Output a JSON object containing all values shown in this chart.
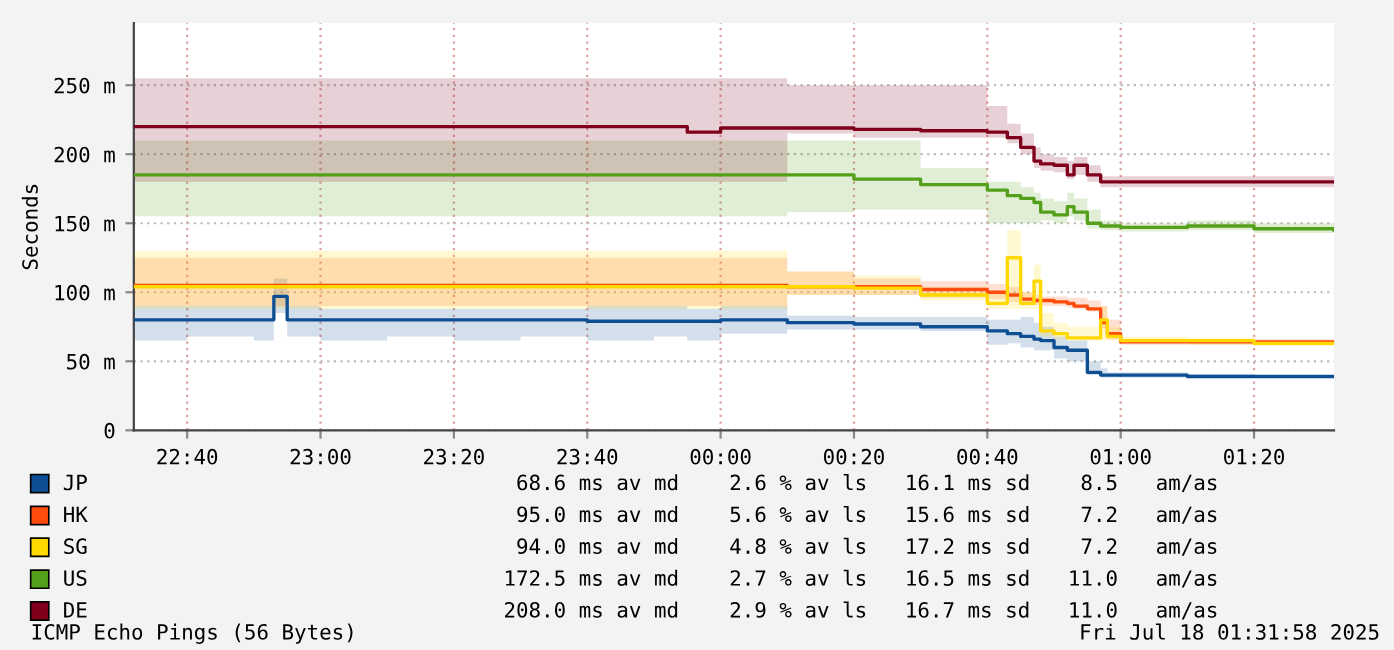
{
  "chart_data": {
    "type": "step",
    "ylabel": "Seconds",
    "x": [
      "2025-07-17T22:32",
      "2025-07-17T22:40",
      "2025-07-17T22:50",
      "2025-07-17T22:53",
      "2025-07-17T22:55",
      "2025-07-17T23:00",
      "2025-07-17T23:10",
      "2025-07-17T23:20",
      "2025-07-17T23:30",
      "2025-07-17T23:40",
      "2025-07-17T23:50",
      "2025-07-17T23:55",
      "2025-07-18T00:00",
      "2025-07-18T00:10",
      "2025-07-18T00:20",
      "2025-07-18T00:30",
      "2025-07-18T00:40",
      "2025-07-18T00:43",
      "2025-07-18T00:45",
      "2025-07-18T00:47",
      "2025-07-18T00:48",
      "2025-07-18T00:50",
      "2025-07-18T00:52",
      "2025-07-18T00:53",
      "2025-07-18T00:55",
      "2025-07-18T00:57",
      "2025-07-18T00:58",
      "2025-07-18T01:00",
      "2025-07-18T01:10",
      "2025-07-18T01:20",
      "2025-07-18T01:32"
    ],
    "series": [
      {
        "name": "JP",
        "color": "#0e4f94",
        "values": [
          80,
          80,
          80,
          97,
          80,
          80,
          80,
          80,
          80,
          79,
          79,
          79,
          80,
          78,
          77,
          75,
          72,
          70,
          68,
          66,
          65,
          60,
          58,
          58,
          42,
          40,
          40,
          40,
          39,
          39,
          39
        ],
        "lower": [
          65,
          68,
          65,
          85,
          68,
          65,
          68,
          65,
          68,
          65,
          68,
          65,
          70,
          73,
          73,
          72,
          62,
          63,
          60,
          58,
          58,
          52,
          50,
          50,
          40,
          38,
          38,
          38,
          38,
          38,
          38
        ],
        "upper": [
          90,
          90,
          90,
          110,
          90,
          88,
          88,
          88,
          88,
          90,
          90,
          88,
          90,
          83,
          82,
          82,
          80,
          80,
          82,
          78,
          75,
          68,
          65,
          65,
          50,
          45,
          42,
          42,
          41,
          40,
          40
        ]
      },
      {
        "name": "HK",
        "color": "#ff4c0c",
        "values": [
          105,
          105,
          105,
          105,
          105,
          105,
          105,
          105,
          105,
          105,
          105,
          105,
          105,
          104,
          104,
          102,
          100,
          98,
          95,
          94,
          94,
          93,
          92,
          90,
          88,
          78,
          70,
          64,
          64,
          64,
          64
        ],
        "lower": [
          90,
          90,
          90,
          90,
          90,
          90,
          90,
          90,
          90,
          90,
          90,
          90,
          90,
          98,
          98,
          96,
          95,
          93,
          92,
          91,
          90,
          90,
          89,
          88,
          86,
          74,
          66,
          62,
          62,
          62,
          62
        ],
        "upper": [
          125,
          125,
          125,
          125,
          125,
          125,
          125,
          125,
          125,
          125,
          125,
          125,
          125,
          115,
          110,
          108,
          106,
          104,
          100,
          98,
          97,
          97,
          96,
          96,
          94,
          90,
          80,
          66,
          66,
          66,
          66
        ]
      },
      {
        "name": "SG",
        "color": "#ffd800",
        "values": [
          104,
          104,
          104,
          104,
          104,
          104,
          104,
          104,
          104,
          104,
          104,
          104,
          104,
          104,
          103,
          98,
          92,
          125,
          92,
          108,
          72,
          70,
          67,
          67,
          67,
          80,
          68,
          65,
          65,
          63,
          63
        ],
        "lower": [
          88,
          88,
          88,
          88,
          88,
          88,
          88,
          88,
          88,
          88,
          88,
          88,
          88,
          98,
          98,
          94,
          88,
          88,
          88,
          88,
          68,
          66,
          65,
          65,
          65,
          65,
          65,
          63,
          62,
          61,
          61
        ],
        "upper": [
          130,
          130,
          130,
          130,
          130,
          130,
          130,
          130,
          130,
          130,
          130,
          130,
          130,
          115,
          112,
          104,
          100,
          145,
          100,
          120,
          85,
          78,
          75,
          75,
          75,
          90,
          75,
          68,
          67,
          65,
          65
        ]
      },
      {
        "name": "US",
        "color": "#55a01a",
        "values": [
          185,
          185,
          185,
          185,
          185,
          185,
          185,
          185,
          185,
          185,
          185,
          185,
          185,
          185,
          182,
          178,
          174,
          170,
          168,
          165,
          158,
          156,
          162,
          158,
          150,
          148,
          148,
          147,
          148,
          146,
          145
        ],
        "lower": [
          155,
          155,
          155,
          155,
          155,
          155,
          155,
          155,
          155,
          155,
          155,
          155,
          155,
          158,
          160,
          160,
          150,
          150,
          150,
          150,
          152,
          150,
          155,
          152,
          146,
          145,
          145,
          144,
          145,
          143,
          142
        ],
        "upper": [
          210,
          210,
          210,
          210,
          210,
          210,
          210,
          210,
          210,
          210,
          210,
          210,
          210,
          210,
          210,
          190,
          180,
          180,
          176,
          172,
          168,
          166,
          172,
          168,
          160,
          152,
          152,
          150,
          152,
          150,
          148
        ]
      },
      {
        "name": "DE",
        "color": "#80001c",
        "values": [
          220,
          220,
          220,
          220,
          220,
          220,
          220,
          220,
          220,
          220,
          220,
          216,
          219,
          219,
          218,
          217,
          216,
          212,
          205,
          195,
          193,
          192,
          185,
          192,
          185,
          180,
          180,
          180,
          180,
          180,
          180
        ],
        "lower": [
          180,
          180,
          180,
          180,
          180,
          180,
          180,
          180,
          180,
          180,
          180,
          180,
          180,
          215,
          212,
          212,
          212,
          208,
          200,
          190,
          188,
          187,
          182,
          185,
          180,
          176,
          176,
          176,
          176,
          176,
          176
        ],
        "upper": [
          255,
          255,
          255,
          255,
          255,
          255,
          255,
          255,
          255,
          255,
          255,
          255,
          255,
          250,
          250,
          250,
          235,
          222,
          215,
          205,
          200,
          198,
          195,
          198,
          192,
          184,
          184,
          184,
          184,
          184,
          184
        ]
      }
    ],
    "xlim": [
      "2025-07-17T22:32",
      "2025-07-18T01:32"
    ],
    "xticks": [
      {
        "value": "2025-07-17T22:40",
        "label": "22:40"
      },
      {
        "value": "2025-07-17T23:00",
        "label": "23:00"
      },
      {
        "value": "2025-07-17T23:20",
        "label": "23:20"
      },
      {
        "value": "2025-07-17T23:40",
        "label": "23:40"
      },
      {
        "value": "2025-07-18T00:00",
        "label": "00:00"
      },
      {
        "value": "2025-07-18T00:20",
        "label": "00:20"
      },
      {
        "value": "2025-07-18T00:40",
        "label": "00:40"
      },
      {
        "value": "2025-07-18T01:00",
        "label": "01:00"
      },
      {
        "value": "2025-07-18T01:20",
        "label": "01:20"
      }
    ],
    "ylim": [
      0,
      295
    ],
    "yticks": [
      0,
      {
        "value": 50,
        "label": "50 m"
      },
      {
        "value": 100,
        "label": "100 m"
      },
      {
        "value": 150,
        "label": "150 m"
      },
      {
        "value": 200,
        "label": "200 m"
      },
      {
        "value": 250,
        "label": "250 m"
      }
    ],
    "grid": true,
    "legend": "bottom",
    "annotations": [
      "68.6 ms av md    2.6 % av ls   16.1 ms sd    8.5   am/as",
      "95.0 ms av md    5.6 % av ls   15.6 ms sd    7.2   am/as",
      "94.0 ms av md    4.8 % av ls   17.2 ms sd    7.2   am/as",
      "172.5 ms av md    2.7 % av ls   16.5 ms sd   11.0   am/as",
      "208.0 ms av md    2.9 % av ls   16.7 ms sd   11.0   am/as",
      "ICMP Echo Pings (56 Bytes)",
      "Fri Jul 18 01:31:58 2025"
    ]
  }
}
